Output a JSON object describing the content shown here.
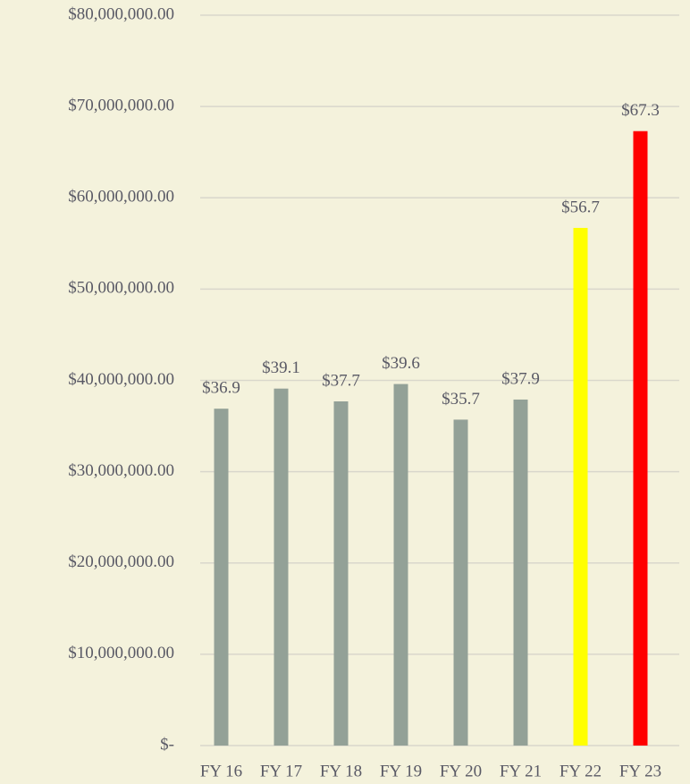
{
  "chart_data": {
    "type": "bar",
    "categories": [
      "FY 16",
      "FY 17",
      "FY 18",
      "FY 19",
      "FY 20",
      "FY 21",
      "FY 22",
      "FY 23"
    ],
    "values": [
      36900000,
      39100000,
      37700000,
      39600000,
      35700000,
      37900000,
      56700000,
      67300000
    ],
    "value_labels": [
      "$36.9",
      "$39.1",
      "$37.7",
      "$39.6",
      "$35.7",
      "$37.9",
      "$56.7",
      "$67.3"
    ],
    "colors": [
      "#93a197",
      "#93a197",
      "#93a197",
      "#93a197",
      "#93a197",
      "#93a197",
      "#ffff00",
      "#ff0000"
    ],
    "ylim": [
      0,
      80000000
    ],
    "yticks": [
      {
        "value": 0,
        "label": "$-"
      },
      {
        "value": 10000000,
        "label": "$10,000,000.00"
      },
      {
        "value": 20000000,
        "label": "$20,000,000.00"
      },
      {
        "value": 30000000,
        "label": "$30,000,000.00"
      },
      {
        "value": 40000000,
        "label": "$40,000,000.00"
      },
      {
        "value": 50000000,
        "label": "$50,000,000.00"
      },
      {
        "value": 60000000,
        "label": "$60,000,000.00"
      },
      {
        "value": 70000000,
        "label": "$70,000,000.00"
      },
      {
        "value": 80000000,
        "label": "$80,000,000.00"
      }
    ],
    "grid": true
  }
}
